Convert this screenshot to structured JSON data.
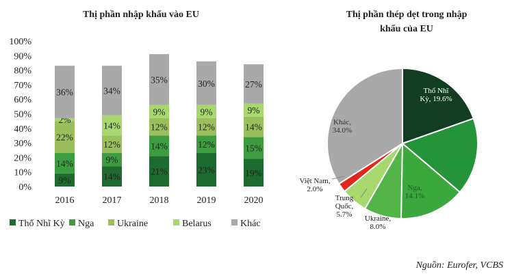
{
  "source": "Nguồn: Eurofer, VCBS",
  "chart_data": [
    {
      "type": "bar",
      "stacked": true,
      "title": "Thị phần nhập khẩu vào EU",
      "categories": [
        "2016",
        "2017",
        "2018",
        "2019",
        "2020"
      ],
      "ylim": [
        0,
        100
      ],
      "yticks": [
        "0%",
        "10%",
        "20%",
        "30%",
        "40%",
        "50%",
        "60%",
        "70%",
        "80%",
        "90%",
        "100%"
      ],
      "legend_position": "bottom",
      "series": [
        {
          "name": "Thổ Nhĩ Kỳ",
          "color": "#1e6b30",
          "values": [
            9,
            14,
            21,
            23,
            19
          ],
          "labels": [
            "9%",
            "14%",
            "21%",
            "23%",
            "19%"
          ]
        },
        {
          "name": "Nga",
          "color": "#3d9b40",
          "values": [
            14,
            9,
            14,
            12,
            15
          ],
          "labels": [
            "14%",
            "9%",
            "14%",
            "12%",
            "15%"
          ]
        },
        {
          "name": "Ukraine",
          "color": "#9bbf5d",
          "values": [
            22,
            12,
            12,
            12,
            14
          ],
          "labels": [
            "22%",
            "12%",
            "12%",
            "12%",
            "14%"
          ]
        },
        {
          "name": "Belarus",
          "color": "#a7d86d",
          "values": [
            2,
            14,
            9,
            9,
            9
          ],
          "labels": [
            "2%",
            "14%",
            "9%",
            "9%",
            "9%"
          ]
        },
        {
          "name": "Khác",
          "color": "#a9a9a9",
          "values": [
            36,
            34,
            35,
            30,
            27
          ],
          "labels": [
            "36%",
            "34%",
            "35%",
            "30%",
            "27%"
          ]
        }
      ]
    },
    {
      "type": "pie",
      "title_lines": [
        "Thị phần thép dẹt trong nhập",
        "khẩu của EU"
      ],
      "slices": [
        {
          "label_lines": [
            "Thổ Nhĩ",
            "Kỳ, 19.6%"
          ],
          "value": 19.6,
          "color": "#123d22",
          "text_color": "#ffffff"
        },
        {
          "label_lines": [
            "Hàn Quốc,",
            "16.6%"
          ],
          "value": 16.6,
          "color": "#25933a",
          "text_color": "#2f8a38"
        },
        {
          "label_lines": [
            "Nga,",
            "14.1%"
          ],
          "value": 14.1,
          "color": "#3aa83c",
          "text_color": "#1e5a26"
        },
        {
          "label_lines": [
            "Ukraine,",
            "8.0%"
          ],
          "value": 8.0,
          "color": "#53b447",
          "text_color": "#222222"
        },
        {
          "label_lines": [
            "Trung",
            "Quốc,",
            "5.7%"
          ],
          "value": 5.7,
          "color": "#a7d86d",
          "text_color": "#222222"
        },
        {
          "label_lines": [
            "Việt Nam,",
            "2.0%"
          ],
          "value": 2.0,
          "color": "#e3261c",
          "text_color": "#222222"
        },
        {
          "label_lines": [
            "Khác,",
            "34.0%"
          ],
          "value": 34.0,
          "color": "#a9a9a9",
          "text_color": "#333333"
        }
      ]
    }
  ]
}
